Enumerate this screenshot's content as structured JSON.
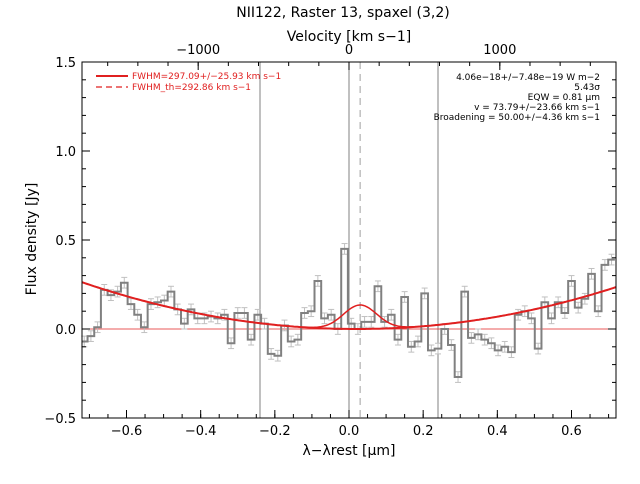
{
  "chart_data": {
    "type": "line",
    "title": "NII122, Raster 13, spaxel (3,2)",
    "xlabel": "λ−λrest [μm]",
    "x2label": "Velocity [km s−1]",
    "ylabel": "Flux density [Jy]",
    "xlim": [
      -0.72,
      0.72
    ],
    "ylim": [
      -0.5,
      1.5
    ],
    "xticks": [
      -0.6,
      -0.4,
      -0.2,
      0.0,
      0.2,
      0.4,
      0.6
    ],
    "xtick_labels": [
      "−0.6",
      "−0.4",
      "−0.2",
      "0.0",
      "0.2",
      "0.4",
      "0.6"
    ],
    "yticks": [
      -0.5,
      0.0,
      0.5,
      1.0,
      1.5
    ],
    "ytick_labels": [
      "−0.5",
      "0.0",
      "0.5",
      "1.0",
      "1.5"
    ],
    "vticks": [
      -1000,
      0,
      1000
    ],
    "vtick_labels": [
      "−1000",
      "0",
      "1000"
    ],
    "vlines_solid": [
      -0.24,
      0.0,
      0.24
    ],
    "vline_dashed": 0.03,
    "legend": [
      {
        "label": "FWHM=297.09+/−25.93 km s−1",
        "style": "solid",
        "color": "#e02020"
      },
      {
        "label": "FWHM_th=292.86 km s−1",
        "style": "dashed",
        "color": "#e02020"
      }
    ],
    "annotations": [
      "4.06e−18+/−7.48e−19 W m−2",
      "5.43σ",
      "EQW = 0.81 μm",
      "v = 73.79+/−23.66 km s−1",
      "Broadening = 50.00+/−4.36 km s−1"
    ],
    "spectrum": {
      "x": [
        -0.714,
        -0.696,
        -0.678,
        -0.66,
        -0.642,
        -0.624,
        -0.606,
        -0.588,
        -0.57,
        -0.552,
        -0.534,
        -0.516,
        -0.498,
        -0.48,
        -0.462,
        -0.444,
        -0.426,
        -0.408,
        -0.39,
        -0.372,
        -0.354,
        -0.336,
        -0.318,
        -0.3,
        -0.282,
        -0.264,
        -0.246,
        -0.228,
        -0.21,
        -0.192,
        -0.174,
        -0.156,
        -0.138,
        -0.12,
        -0.102,
        -0.084,
        -0.066,
        -0.048,
        -0.03,
        -0.012,
        0.006,
        0.024,
        0.042,
        0.06,
        0.078,
        0.096,
        0.114,
        0.132,
        0.15,
        0.168,
        0.186,
        0.204,
        0.222,
        0.24,
        0.258,
        0.276,
        0.294,
        0.312,
        0.33,
        0.348,
        0.366,
        0.384,
        0.402,
        0.42,
        0.438,
        0.456,
        0.474,
        0.492,
        0.51,
        0.528,
        0.546,
        0.564,
        0.582,
        0.6,
        0.618,
        0.636,
        0.654,
        0.672,
        0.69,
        0.708
      ],
      "y": [
        -0.07,
        -0.04,
        0.01,
        0.22,
        0.19,
        0.21,
        0.26,
        0.14,
        0.08,
        0.01,
        0.14,
        0.15,
        0.16,
        0.21,
        0.11,
        0.03,
        0.11,
        0.06,
        0.06,
        0.07,
        0.06,
        0.08,
        -0.08,
        0.09,
        0.09,
        -0.06,
        0.08,
        0.03,
        -0.14,
        -0.15,
        0.02,
        -0.07,
        -0.06,
        0.09,
        0.1,
        0.27,
        0.06,
        0.08,
        0.0,
        0.45,
        0.03,
        0.0,
        0.04,
        0.04,
        0.24,
        0.04,
        0.08,
        -0.06,
        0.18,
        -0.1,
        -0.07,
        0.2,
        -0.12,
        -0.11,
        0.0,
        -0.09,
        -0.27,
        0.21,
        -0.05,
        -0.03,
        -0.06,
        -0.08,
        -0.12,
        -0.1,
        -0.13,
        0.08,
        0.1,
        0.06,
        -0.11,
        0.15,
        0.06,
        0.15,
        0.09,
        0.27,
        0.12,
        0.17,
        0.31,
        0.1,
        0.36,
        0.39
      ],
      "err": 0.03,
      "color": "#808080"
    },
    "fit": {
      "baseline": {
        "center": 0.02,
        "a": 0.48,
        "offset": 0.0,
        "note_shape": "quadratic"
      },
      "gaussian": {
        "center": 0.03,
        "amplitude": 0.135,
        "sigma": 0.045
      },
      "color": "#e02020"
    }
  }
}
